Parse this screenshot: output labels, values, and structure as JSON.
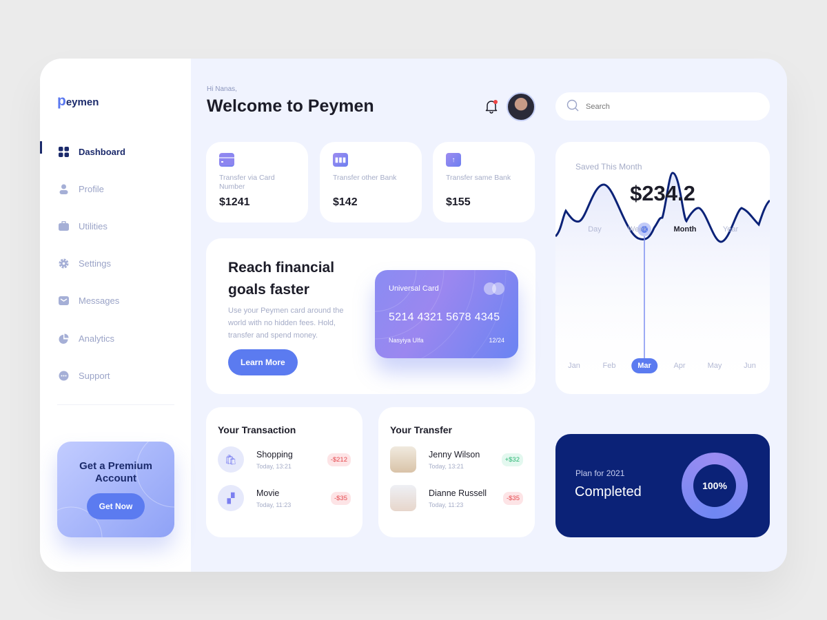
{
  "brand": {
    "logo_letter": "p",
    "logo_rest": "eymen"
  },
  "sidebar": {
    "items": [
      {
        "label": "Dashboard",
        "icon": "grid-icon",
        "active": true
      },
      {
        "label": "Profile",
        "icon": "user-icon"
      },
      {
        "label": "Utilities",
        "icon": "briefcase-icon"
      },
      {
        "label": "Settings",
        "icon": "gear-icon"
      },
      {
        "label": "Messages",
        "icon": "mail-icon"
      },
      {
        "label": "Analytics",
        "icon": "pie-chart-icon"
      },
      {
        "label": "Support",
        "icon": "chat-icon"
      }
    ],
    "premium": {
      "title": "Get a Premium Account",
      "button": "Get Now"
    }
  },
  "header": {
    "greeting": "Hi Nanas,",
    "title": "Welcome to Peymen",
    "search_placeholder": "Search"
  },
  "stats": [
    {
      "label": "Transfer via Card Number",
      "value": "$1241",
      "icon": "card-icon"
    },
    {
      "label": "Transfer other Bank",
      "value": "$142",
      "icon": "bar-chart-icon"
    },
    {
      "label": "Transfer same Bank",
      "value": "$155",
      "icon": "upload-icon"
    }
  ],
  "promo": {
    "title": "Reach financial goals faster",
    "text": "Use your Peymen card around the world with no hidden fees. Hold, transfer and spend money.",
    "button": "Learn More",
    "card": {
      "name": "Universal Card",
      "number": "5214 4321 5678 4345",
      "holder": "Nasyiya Ulfa",
      "expiry": "12/24"
    }
  },
  "transactions": {
    "title": "Your Transaction",
    "items": [
      {
        "name": "Shopping",
        "time": "Today, 13:21",
        "amount": "-$212"
      },
      {
        "name": "Movie",
        "time": "Today, 11:23",
        "amount": "-$35"
      }
    ]
  },
  "transfers": {
    "title": "Your Transfer",
    "items": [
      {
        "name": "Jenny Wilson",
        "time": "Today, 13:21",
        "amount": "+$32"
      },
      {
        "name": "Dianne Russell",
        "time": "Today, 11:23",
        "amount": "-$35"
      }
    ]
  },
  "saved": {
    "label": "Saved This Month",
    "amount": "$234.2",
    "tabs": [
      "Day",
      "Week",
      "Month",
      "Year"
    ],
    "active_tab": "Month",
    "months": [
      "Jan",
      "Feb",
      "Mar",
      "Apr",
      "May",
      "Jun"
    ],
    "selected_month": "Mar"
  },
  "plan": {
    "label": "Plan for 2021",
    "status": "Completed",
    "percent": "100%"
  },
  "colors": {
    "accent": "#5b7bf0",
    "navy": "#0b2277",
    "negative": "#e5484d",
    "positive": "#2bb673"
  }
}
